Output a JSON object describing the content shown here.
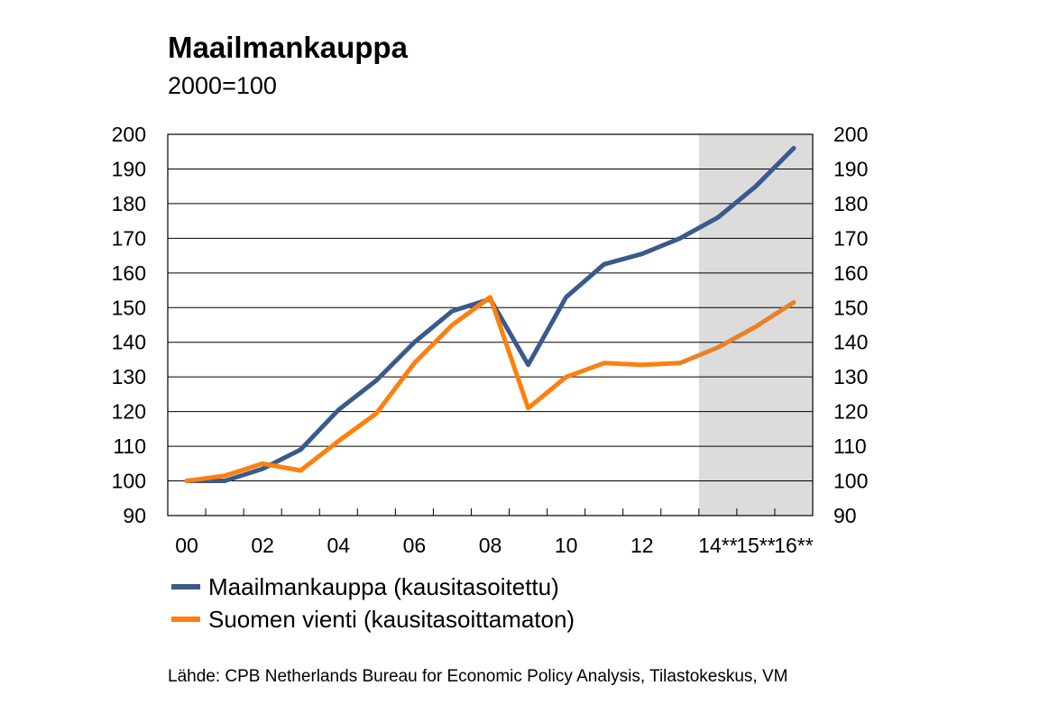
{
  "title": "Maailmankauppa",
  "subtitle": "2000=100",
  "source": "Lähde: CPB Netherlands Bureau for Economic Policy Analysis, Tilastokeskus, VM",
  "chart_data": {
    "type": "line",
    "title": "Maailmankauppa",
    "subtitle": "2000=100",
    "xlabel": "",
    "ylabel": "",
    "ylim": [
      90,
      200
    ],
    "yticks": [
      90,
      100,
      110,
      120,
      130,
      140,
      150,
      160,
      170,
      180,
      190,
      200
    ],
    "x": [
      2000,
      2001,
      2002,
      2003,
      2004,
      2005,
      2006,
      2007,
      2008,
      2009,
      2010,
      2011,
      2012,
      2013,
      2014,
      2015,
      2016
    ],
    "xticks": [
      {
        "x": 2000,
        "label": "00"
      },
      {
        "x": 2002,
        "label": "02"
      },
      {
        "x": 2004,
        "label": "04"
      },
      {
        "x": 2006,
        "label": "06"
      },
      {
        "x": 2008,
        "label": "08"
      },
      {
        "x": 2010,
        "label": "10"
      },
      {
        "x": 2012,
        "label": "12"
      },
      {
        "x": 2014,
        "label": "14**"
      },
      {
        "x": 2015,
        "label": "15**"
      },
      {
        "x": 2016,
        "label": "16**"
      }
    ],
    "forecast_from": 2013.5,
    "forecast_shading": "#dcdcdc",
    "grid": true,
    "dual_y_axis": true,
    "legend_position": "bottom-left",
    "series": [
      {
        "name": "Maailmankauppa (kausitasoitettu)",
        "color": "#3a5a8c",
        "values": [
          100,
          100,
          103.5,
          109,
          120.5,
          129,
          140,
          149,
          152.5,
          133.5,
          153,
          162.5,
          165.5,
          170,
          176,
          185,
          196
        ]
      },
      {
        "name": "Suomen vienti (kausitasoittamaton)",
        "color": "#ff7f0e",
        "forecast_color": "#e8822a",
        "values": [
          100,
          101.5,
          105,
          103,
          111.5,
          119.5,
          134,
          145,
          153,
          121,
          130,
          134,
          133.5,
          134,
          138.5,
          144.5,
          151.5
        ]
      }
    ]
  }
}
